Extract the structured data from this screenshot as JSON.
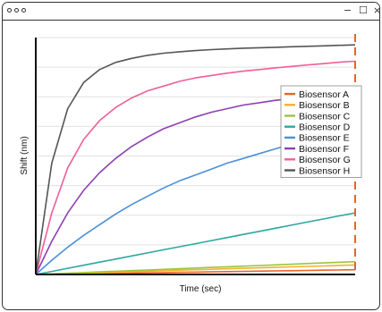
{
  "window": {
    "minimize_glyph": "−",
    "maximize_glyph": "☐",
    "close_glyph": "×"
  },
  "chart_data": {
    "type": "line",
    "title": "",
    "xlabel": "Time (sec)",
    "ylabel": "Shift (nm)",
    "xlim": [
      0,
      100
    ],
    "ylim": [
      0,
      100
    ],
    "grid": true,
    "legend_position": "right",
    "x": [
      0,
      5,
      10,
      15,
      20,
      25,
      30,
      35,
      40,
      45,
      50,
      55,
      60,
      65,
      70,
      75,
      80,
      85,
      90,
      95,
      100
    ],
    "series": [
      {
        "name": "Biosensor A",
        "color": "#e8632a",
        "values": [
          0,
          0.1,
          0.2,
          0.3,
          0.4,
          0.5,
          0.6,
          0.7,
          0.8,
          0.9,
          1.0,
          1.1,
          1.2,
          1.3,
          1.4,
          1.5,
          1.6,
          1.7,
          1.8,
          1.9,
          2.0
        ]
      },
      {
        "name": "Biosensor B",
        "color": "#f2b22c",
        "values": [
          0,
          0.2,
          0.4,
          0.6,
          0.8,
          1.0,
          1.2,
          1.4,
          1.6,
          1.8,
          2.0,
          2.2,
          2.4,
          2.6,
          2.8,
          3.0,
          3.2,
          3.4,
          3.6,
          3.8,
          4.0
        ]
      },
      {
        "name": "Biosensor C",
        "color": "#9bc53d",
        "values": [
          0,
          0.27,
          0.54,
          0.81,
          1.08,
          1.35,
          1.62,
          1.89,
          2.16,
          2.43,
          2.7,
          2.97,
          3.24,
          3.51,
          3.78,
          4.05,
          4.32,
          4.59,
          4.86,
          5.13,
          5.4
        ]
      },
      {
        "name": "Biosensor D",
        "color": "#2ba8a0",
        "values": [
          0,
          1.3,
          2.6,
          3.9,
          5.2,
          6.5,
          7.8,
          9.1,
          10.4,
          11.7,
          13.0,
          14.3,
          15.6,
          16.9,
          18.2,
          19.5,
          20.8,
          22.1,
          23.4,
          24.7,
          26.0
        ]
      },
      {
        "name": "Biosensor E",
        "color": "#4a90d9",
        "values": [
          0,
          6,
          11.5,
          16.5,
          21,
          25.5,
          29.5,
          33,
          36.5,
          39.5,
          42,
          44.5,
          47,
          49,
          51,
          53,
          55,
          56.5,
          58,
          59.5,
          61
        ]
      },
      {
        "name": "Biosensor F",
        "color": "#8e3fb0",
        "values": [
          0,
          14,
          26,
          35.5,
          43,
          49,
          54,
          58,
          61.5,
          64,
          66.5,
          68.5,
          70,
          71.5,
          72.5,
          73.5,
          74.2,
          74.8,
          75.3,
          75.7,
          76
        ]
      },
      {
        "name": "Biosensor G",
        "color": "#ee5f98",
        "values": [
          0,
          26,
          45,
          57,
          65,
          70.5,
          74.5,
          77.5,
          79.5,
          81.5,
          83,
          84,
          85,
          85.8,
          86.5,
          87.2,
          87.8,
          88.4,
          89,
          89.6,
          90
        ]
      },
      {
        "name": "Biosensor H",
        "color": "#555555",
        "values": [
          0,
          47,
          70,
          81,
          86.5,
          89.5,
          91.2,
          92.5,
          93.4,
          94,
          94.5,
          94.9,
          95.2,
          95.5,
          95.7,
          95.9,
          96.1,
          96.3,
          96.5,
          96.7,
          96.9
        ]
      }
    ],
    "annotations": [
      {
        "type": "vertical-dashed-line",
        "x": 100,
        "color": "#e8632a"
      }
    ]
  }
}
